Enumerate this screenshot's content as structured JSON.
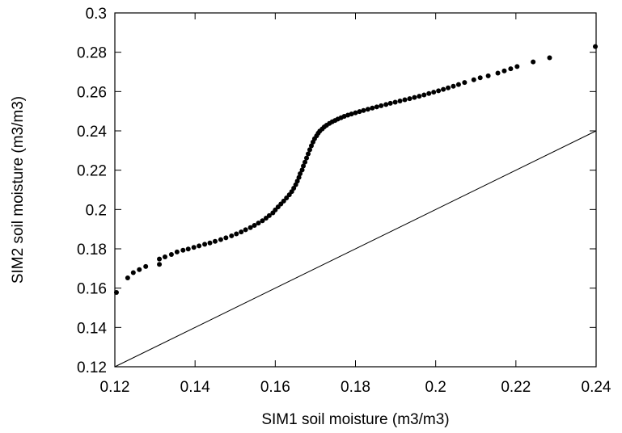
{
  "chart_data": {
    "type": "scatter",
    "title": "",
    "xlabel": "SIM1 soil moisture (m3/m3)",
    "ylabel": "SIM2 soil moisture (m3/m3)",
    "xlim": [
      0.12,
      0.24
    ],
    "ylim": [
      0.12,
      0.3
    ],
    "xticks": [
      "0.12",
      "0.14",
      "0.16",
      "0.18",
      "0.2",
      "0.22",
      "0.24"
    ],
    "xtick_values": [
      0.12,
      0.14,
      0.16,
      0.18,
      0.2,
      0.22,
      0.24
    ],
    "yticks": [
      "0.12",
      "0.14",
      "0.16",
      "0.18",
      "0.2",
      "0.22",
      "0.24",
      "0.26",
      "0.28",
      "0.3"
    ],
    "ytick_values": [
      0.12,
      0.14,
      0.16,
      0.18,
      0.2,
      0.22,
      0.24,
      0.26,
      0.28,
      0.3
    ],
    "grid": false,
    "series": [
      {
        "marker_color": "#000000",
        "x": [
          0.1204,
          0.1232,
          0.1246,
          0.1261,
          0.1277,
          0.1311,
          0.1311,
          0.1325,
          0.1341,
          0.1355,
          0.137,
          0.1383,
          0.1397,
          0.141,
          0.1424,
          0.1437,
          0.145,
          0.1464,
          0.1477,
          0.1491,
          0.1503,
          0.1515,
          0.1526,
          0.1538,
          0.1548,
          0.1558,
          0.1568,
          0.1577,
          0.1585,
          0.1594,
          0.16,
          0.1607,
          0.1614,
          0.1621,
          0.1628,
          0.1635,
          0.1641,
          0.1646,
          0.1651,
          0.1655,
          0.1659,
          0.1662,
          0.1667,
          0.167,
          0.1674,
          0.1678,
          0.1682,
          0.1686,
          0.169,
          0.1694,
          0.1698,
          0.1703,
          0.1707,
          0.1711,
          0.1717,
          0.1722,
          0.1728,
          0.1735,
          0.1742,
          0.1749,
          0.1756,
          0.1764,
          0.1772,
          0.1781,
          0.179,
          0.18,
          0.181,
          0.182,
          0.1831,
          0.1842,
          0.1853,
          0.1864,
          0.1876,
          0.1887,
          0.1899,
          0.1911,
          0.1923,
          0.1935,
          0.1947,
          0.1959,
          0.1971,
          0.1983,
          0.1995,
          0.2007,
          0.2019,
          0.2031,
          0.2044,
          0.2057,
          0.2072,
          0.2095,
          0.2111,
          0.2131,
          0.2155,
          0.2171,
          0.2187,
          0.2203,
          0.2243,
          0.2284,
          0.2398
        ],
        "y": [
          0.1578,
          0.1652,
          0.1679,
          0.1694,
          0.171,
          0.1721,
          0.1748,
          0.1759,
          0.1771,
          0.1784,
          0.1793,
          0.1799,
          0.1807,
          0.1815,
          0.1823,
          0.183,
          0.1838,
          0.1847,
          0.1856,
          0.1866,
          0.1876,
          0.1886,
          0.1897,
          0.1908,
          0.1919,
          0.1931,
          0.1943,
          0.1956,
          0.1969,
          0.1983,
          0.1998,
          0.2013,
          0.2028,
          0.2043,
          0.2059,
          0.2075,
          0.2091,
          0.2108,
          0.2126,
          0.2144,
          0.2163,
          0.2182,
          0.2201,
          0.2221,
          0.2241,
          0.2262,
          0.2283,
          0.2304,
          0.2324,
          0.2343,
          0.236,
          0.2375,
          0.2388,
          0.2399,
          0.241,
          0.242,
          0.2429,
          0.2438,
          0.2446,
          0.2453,
          0.246,
          0.2467,
          0.2474,
          0.248,
          0.2486,
          0.2492,
          0.2498,
          0.2504,
          0.251,
          0.2516,
          0.2522,
          0.2528,
          0.2534,
          0.254,
          0.2546,
          0.2552,
          0.2558,
          0.2564,
          0.257,
          0.2576,
          0.2583,
          0.259,
          0.2597,
          0.2604,
          0.2611,
          0.2619,
          0.2627,
          0.2636,
          0.2646,
          0.266,
          0.267,
          0.268,
          0.2694,
          0.2705,
          0.2716,
          0.2727,
          0.2751,
          0.2772,
          0.2829
        ]
      }
    ],
    "reference_line": {
      "x": [
        0.12,
        0.24
      ],
      "y": [
        0.12,
        0.24
      ]
    }
  }
}
